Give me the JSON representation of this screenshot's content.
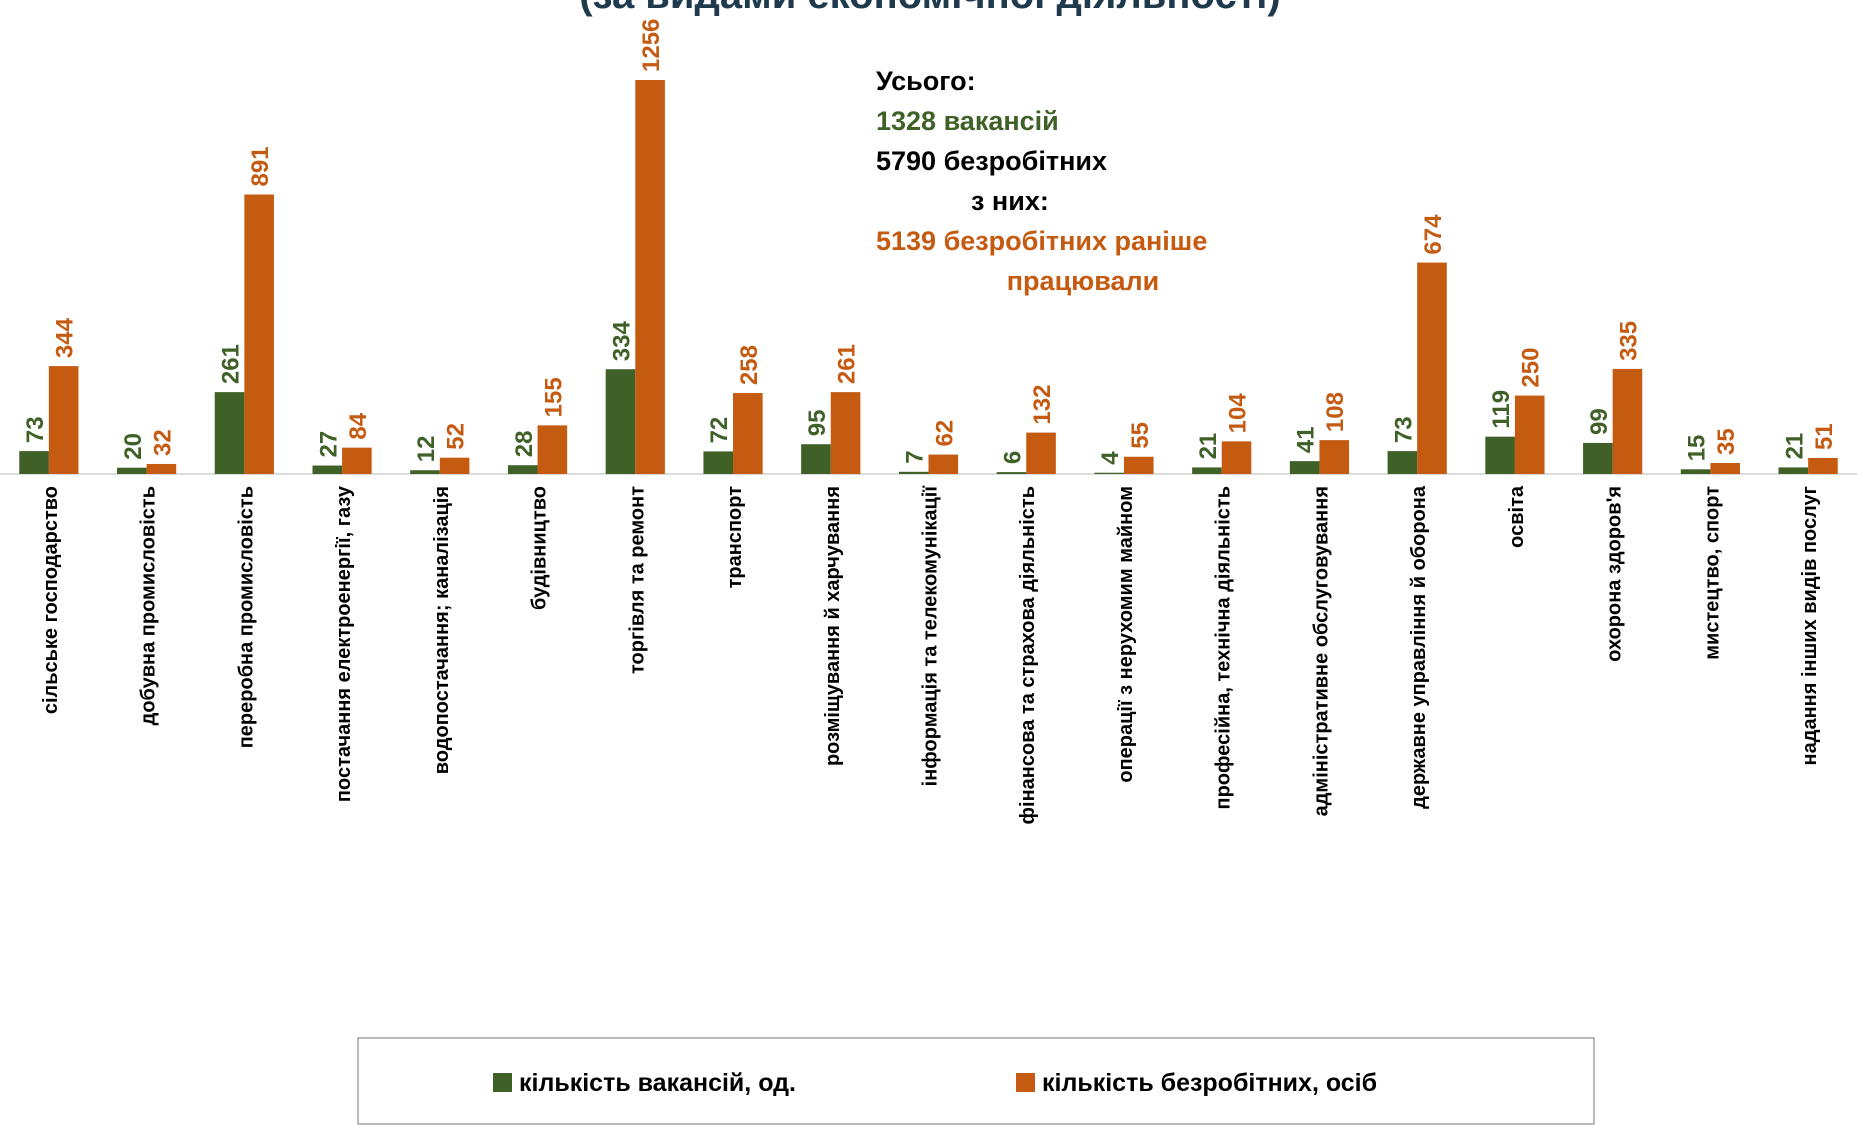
{
  "chart_data": {
    "type": "bar",
    "title": "(за видами економічної діяльності)",
    "categories": [
      "сільське господарство",
      "добувна промисловість",
      "переробна промисловість",
      "постачання електроенергії, газу",
      "водопостачання; каналізація",
      "будівництво",
      "торгівля та ремонт",
      "транспорт",
      "розміщування й харчування",
      "інформація та телекомунікації",
      "фінансова та страхова діяльність",
      "операції з нерухомим майном",
      "професійна, технічна діяльність",
      "адміністративне обслуговування",
      "державне управління й оборона",
      "освіта",
      "охорона здоров'я",
      "мистецтво, спорт",
      "надання інших видів послуг"
    ],
    "series": [
      {
        "name": "кількість вакансій, од.",
        "color": "#3f6128",
        "values": [
          73,
          20,
          261,
          27,
          12,
          28,
          334,
          72,
          95,
          7,
          6,
          4,
          21,
          41,
          73,
          119,
          99,
          15,
          21
        ]
      },
      {
        "name": "кількість безробітних, осіб",
        "color": "#c55a11",
        "values": [
          344,
          32,
          891,
          84,
          52,
          155,
          1256,
          258,
          261,
          62,
          132,
          55,
          104,
          108,
          674,
          250,
          335,
          35,
          51
        ]
      }
    ],
    "annotations": [
      {
        "text": "Усього:",
        "color": "#000000"
      },
      {
        "text": "1328  вакансій",
        "color": "#3f6128"
      },
      {
        "text": "5790 безробітних",
        "color": "#000000"
      },
      {
        "text": "з них:",
        "color": "#000000"
      },
      {
        "text": "5139 безробітних раніше",
        "color": "#c55a11"
      },
      {
        "text": "працювали",
        "color": "#c55a11"
      }
    ],
    "legend": "bottom"
  }
}
